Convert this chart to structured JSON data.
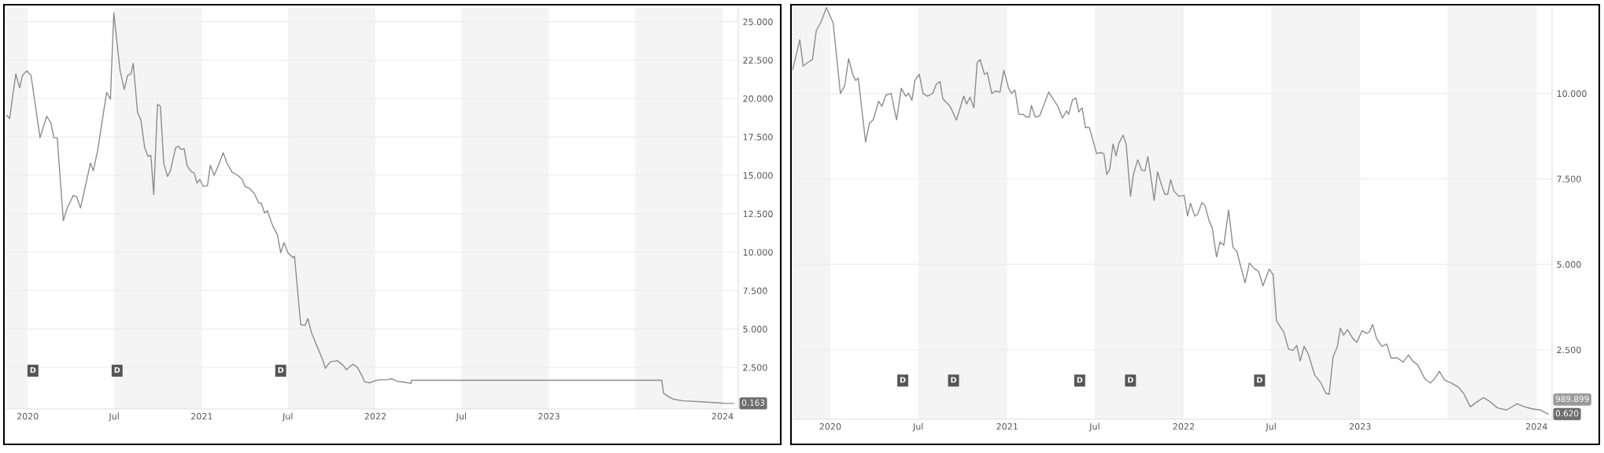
{
  "chart_data": [
    {
      "type": "line",
      "color": "#8c8c8c",
      "grid": "y",
      "legend": false,
      "marker": "none",
      "line_style": "solid",
      "x": [
        "2019-11-18",
        "2019-11-24",
        "2019-12-07",
        "2019-12-15",
        "2019-12-21",
        "2019-12-30",
        "2020-01-08",
        "2020-01-27",
        "2020-02-10",
        "2020-02-19",
        "2020-02-25",
        "2020-03-03",
        "2020-03-16",
        "2020-03-24",
        "2020-04-06",
        "2020-04-13",
        "2020-04-21",
        "2020-05-12",
        "2020-05-18",
        "2020-05-27",
        "2020-06-15",
        "2020-06-23",
        "2020-06-30",
        "2020-07-13",
        "2020-07-22",
        "2020-07-29",
        "2020-08-05",
        "2020-08-10",
        "2020-08-19",
        "2020-08-26",
        "2020-09-03",
        "2020-09-10",
        "2020-09-16",
        "2020-09-22",
        "2020-09-30",
        "2020-10-06",
        "2020-10-13",
        "2020-10-21",
        "2020-10-27",
        "2020-11-07",
        "2020-11-13",
        "2020-11-18",
        "2020-11-25",
        "2020-12-01",
        "2020-12-09",
        "2020-12-16",
        "2020-12-22",
        "2020-12-28",
        "2021-01-04",
        "2021-01-13",
        "2021-01-19",
        "2021-01-27",
        "2021-02-07",
        "2021-02-15",
        "2021-02-23",
        "2021-03-06",
        "2021-03-18",
        "2021-03-27",
        "2021-04-02",
        "2021-04-10",
        "2021-04-21",
        "2021-05-01",
        "2021-05-06",
        "2021-05-13",
        "2021-05-19",
        "2021-05-30",
        "2021-06-09",
        "2021-06-16",
        "2021-06-23",
        "2021-07-01",
        "2021-07-12",
        "2021-07-15",
        "2021-07-22",
        "2021-07-28",
        "2021-08-06",
        "2021-08-12",
        "2021-08-20",
        "2021-09-02",
        "2021-09-12",
        "2021-09-18",
        "2021-09-22",
        "2021-09-29",
        "2021-10-13",
        "2021-10-26",
        "2021-11-01",
        "2021-11-08",
        "2021-11-15",
        "2021-11-24",
        "2021-12-04",
        "2021-12-09",
        "2021-12-20",
        "2021-12-31",
        "2022-01-10",
        "2022-01-26",
        "2022-02-05",
        "2022-02-16",
        "2022-03-03",
        "2022-03-17",
        "2022-03-18",
        "2023-08-26",
        "2023-08-30",
        "2023-09-10",
        "2023-09-20",
        "2023-10-11",
        "2023-11-22",
        "2024-01-03",
        "2024-01-24"
      ],
      "values": [
        18.9,
        18.7,
        21.6,
        20.7,
        21.5,
        21.8,
        21.5,
        17.45,
        18.85,
        18.4,
        17.45,
        17.45,
        12.05,
        12.87,
        13.7,
        13.6,
        12.87,
        15.8,
        15.3,
        16.6,
        20.4,
        19.96,
        25.6,
        21.86,
        20.6,
        21.5,
        21.6,
        22.28,
        19.08,
        18.6,
        16.8,
        16.24,
        16.3,
        13.75,
        19.63,
        19.5,
        15.8,
        14.93,
        15.3,
        16.8,
        16.9,
        16.7,
        16.73,
        15.65,
        15.26,
        15.16,
        14.5,
        14.73,
        14.28,
        14.34,
        15.65,
        15.0,
        15.8,
        16.47,
        15.8,
        15.2,
        15.0,
        14.73,
        14.28,
        14.18,
        13.85,
        13.2,
        13.2,
        12.55,
        12.7,
        11.73,
        11.14,
        9.97,
        10.62,
        9.97,
        9.64,
        9.74,
        7.35,
        5.29,
        5.23,
        5.69,
        4.74,
        3.76,
        3.01,
        2.45,
        2.62,
        2.88,
        2.94,
        2.62,
        2.35,
        2.55,
        2.71,
        2.52,
        1.96,
        1.57,
        1.5,
        1.64,
        1.7,
        1.7,
        1.77,
        1.6,
        1.54,
        1.47,
        1.67,
        1.67,
        0.82,
        0.59,
        0.43,
        0.33,
        0.26,
        0.17,
        0.163
      ],
      "xlim": [
        "2019-11-17",
        "2024-02-03"
      ],
      "xticks": [
        {
          "value": "2020-01-01",
          "label": "2020"
        },
        {
          "value": "2020-07-01",
          "label": "Jul"
        },
        {
          "value": "2021-01-01",
          "label": "2021"
        },
        {
          "value": "2021-07-01",
          "label": "Jul"
        },
        {
          "value": "2022-01-01",
          "label": "2022"
        },
        {
          "value": "2022-07-01",
          "label": "Jul"
        },
        {
          "value": "2023-01-01",
          "label": "2023"
        },
        {
          "value": "2024-01-01",
          "label": "2024"
        }
      ],
      "ylim": [
        -0.2,
        25.9
      ],
      "yticks": [
        {
          "value": 2.5,
          "label": "2.500"
        },
        {
          "value": 5,
          "label": "5.000"
        },
        {
          "value": 7.5,
          "label": "7.500"
        },
        {
          "value": 10,
          "label": "10.000"
        },
        {
          "value": 12.5,
          "label": "12.500"
        },
        {
          "value": 15,
          "label": "15.000"
        },
        {
          "value": 17.5,
          "label": "17.500"
        },
        {
          "value": 20,
          "label": "20.000"
        },
        {
          "value": 22.5,
          "label": "22.500"
        },
        {
          "value": 25,
          "label": "25.000"
        }
      ],
      "bands": [
        {
          "axis": "x",
          "from": "2019-11-17",
          "to": "2020-01-01",
          "color": "#f4f4f4"
        },
        {
          "axis": "x",
          "from": "2020-07-01",
          "to": "2021-01-01",
          "color": "#f4f4f4"
        },
        {
          "axis": "x",
          "from": "2021-07-01",
          "to": "2022-01-01",
          "color": "#f4f4f4"
        },
        {
          "axis": "x",
          "from": "2022-07-01",
          "to": "2023-01-01",
          "color": "#f4f4f4"
        },
        {
          "axis": "x",
          "from": "2023-07-01",
          "to": "2024-01-01",
          "color": "#f4f4f4"
        }
      ],
      "annotations": [
        {
          "text": "D",
          "x": "2020-01-12",
          "y": 2.29
        },
        {
          "text": "D",
          "x": "2020-07-07",
          "y": 2.29
        },
        {
          "text": "D",
          "x": "2021-06-16",
          "y": 2.29
        },
        {
          "text": "0.163",
          "x": "2024-01-24",
          "y": 0.163
        }
      ]
    },
    {
      "type": "line",
      "color": "#8c8c8c",
      "grid": "y",
      "legend": false,
      "marker": "none",
      "line_style": "solid",
      "x": [
        "2019-10-15",
        "2019-10-30",
        "2019-11-06",
        "2019-11-16",
        "2019-11-25",
        "2019-12-03",
        "2019-12-14",
        "2019-12-24",
        "2020-01-07",
        "2020-01-22",
        "2020-01-31",
        "2020-02-08",
        "2020-02-17",
        "2020-02-23",
        "2020-02-28",
        "2020-03-14",
        "2020-03-22",
        "2020-03-30",
        "2020-04-10",
        "2020-04-17",
        "2020-04-25",
        "2020-05-06",
        "2020-05-17",
        "2020-05-27",
        "2020-06-05",
        "2020-06-11",
        "2020-06-18",
        "2020-06-24",
        "2020-07-03",
        "2020-07-11",
        "2020-07-20",
        "2020-07-31",
        "2020-08-07",
        "2020-08-15",
        "2020-08-21",
        "2020-09-05",
        "2020-09-18",
        "2020-10-03",
        "2020-10-09",
        "2020-10-16",
        "2020-10-24",
        "2020-10-31",
        "2020-11-06",
        "2020-11-15",
        "2020-11-21",
        "2020-11-30",
        "2020-12-08",
        "2020-12-17",
        "2020-12-25",
        "2021-01-04",
        "2021-01-10",
        "2021-01-17",
        "2021-01-25",
        "2021-02-03",
        "2021-02-09",
        "2021-02-16",
        "2021-02-20",
        "2021-02-28",
        "2021-03-09",
        "2021-03-28",
        "2021-04-06",
        "2021-04-16",
        "2021-04-25",
        "2021-05-04",
        "2021-05-08",
        "2021-05-16",
        "2021-05-23",
        "2021-05-29",
        "2021-06-05",
        "2021-06-12",
        "2021-06-20",
        "2021-07-05",
        "2021-07-13",
        "2021-07-20",
        "2021-07-26",
        "2021-08-01",
        "2021-08-08",
        "2021-08-14",
        "2021-08-20",
        "2021-08-29",
        "2021-09-04",
        "2021-09-13",
        "2021-09-19",
        "2021-09-28",
        "2021-10-06",
        "2021-10-13",
        "2021-10-19",
        "2021-10-26",
        "2021-11-01",
        "2021-11-08",
        "2021-11-16",
        "2021-11-23",
        "2021-11-29",
        "2021-12-05",
        "2021-12-12",
        "2021-12-22",
        "2022-01-02",
        "2022-01-09",
        "2022-01-15",
        "2022-01-24",
        "2022-01-30",
        "2022-02-08",
        "2022-02-14",
        "2022-02-23",
        "2022-03-01",
        "2022-03-10",
        "2022-03-17",
        "2022-03-25",
        "2022-04-04",
        "2022-04-13",
        "2022-04-21",
        "2022-05-08",
        "2022-05-17",
        "2022-05-26",
        "2022-06-05",
        "2022-06-14",
        "2022-06-27",
        "2022-07-05",
        "2022-07-12",
        "2022-07-18",
        "2022-07-27",
        "2022-08-06",
        "2022-08-15",
        "2022-08-23",
        "2022-08-30",
        "2022-09-07",
        "2022-09-16",
        "2022-09-29",
        "2022-10-12",
        "2022-10-22",
        "2022-10-29",
        "2022-11-06",
        "2022-11-15",
        "2022-11-21",
        "2022-11-28",
        "2022-12-06",
        "2022-12-17",
        "2022-12-25",
        "2023-01-05",
        "2023-01-14",
        "2023-01-20",
        "2023-01-27",
        "2023-02-04",
        "2023-02-15",
        "2023-02-25",
        "2023-03-06",
        "2023-03-19",
        "2023-03-31",
        "2023-04-11",
        "2023-04-20",
        "2023-04-30",
        "2023-05-15",
        "2023-05-26",
        "2023-06-04",
        "2023-06-14",
        "2023-06-25",
        "2023-07-08",
        "2023-07-23",
        "2023-08-03",
        "2023-08-17",
        "2023-08-28",
        "2023-09-13",
        "2023-09-25",
        "2023-10-12",
        "2023-10-31",
        "2023-11-22",
        "2023-12-05",
        "2023-12-24",
        "2024-01-09",
        "2024-01-25"
      ],
      "values": [
        10.68,
        11.57,
        10.8,
        10.91,
        10.99,
        11.83,
        12.13,
        12.51,
        12.06,
        10.0,
        10.23,
        11.02,
        10.53,
        10.38,
        10.45,
        8.58,
        9.13,
        9.23,
        9.77,
        9.62,
        9.95,
        10.0,
        9.23,
        10.15,
        9.92,
        10.0,
        9.8,
        10.38,
        10.56,
        10.0,
        9.92,
        10.0,
        10.26,
        10.35,
        9.84,
        9.62,
        9.22,
        9.92,
        9.69,
        9.89,
        9.58,
        10.91,
        10.99,
        10.56,
        10.61,
        10.0,
        10.07,
        10.04,
        10.68,
        10.15,
        10.0,
        10.1,
        9.39,
        9.39,
        9.31,
        9.31,
        9.65,
        9.31,
        9.34,
        10.04,
        9.84,
        9.62,
        9.28,
        9.49,
        9.39,
        9.81,
        9.87,
        9.46,
        9.58,
        9.0,
        9.0,
        8.24,
        8.27,
        8.24,
        7.63,
        7.78,
        8.52,
        8.17,
        8.55,
        8.78,
        8.52,
        6.99,
        7.63,
        8.06,
        7.75,
        7.74,
        8.15,
        7.48,
        6.87,
        7.71,
        7.33,
        7.05,
        7.05,
        7.48,
        7.14,
        6.99,
        7.02,
        6.41,
        6.79,
        6.41,
        6.47,
        6.81,
        6.72,
        6.26,
        6.07,
        5.22,
        5.65,
        5.56,
        6.59,
        5.5,
        5.37,
        4.46,
        5.04,
        4.89,
        4.79,
        4.37,
        4.86,
        4.7,
        3.36,
        3.21,
        3.02,
        2.52,
        2.48,
        2.63,
        2.17,
        2.6,
        2.37,
        1.76,
        1.53,
        1.23,
        1.2,
        2.29,
        2.6,
        3.13,
        2.93,
        3.09,
        2.83,
        2.72,
        3.06,
        2.98,
        3.02,
        3.24,
        2.83,
        2.6,
        2.67,
        2.26,
        2.26,
        2.14,
        2.35,
        2.17,
        2.06,
        1.65,
        1.53,
        1.65,
        1.87,
        1.61,
        1.53,
        1.41,
        1.23,
        0.83,
        0.95,
        1.1,
        1.0,
        0.8,
        0.74,
        0.92,
        0.84,
        0.77,
        0.74,
        0.62
      ],
      "xlim": [
        "2019-10-15",
        "2024-02-02"
      ],
      "xticks": [
        {
          "value": "2020-01-01",
          "label": "2020"
        },
        {
          "value": "2020-07-01",
          "label": "Jul"
        },
        {
          "value": "2021-01-01",
          "label": "2021"
        },
        {
          "value": "2021-07-01",
          "label": "Jul"
        },
        {
          "value": "2022-01-01",
          "label": "2022"
        },
        {
          "value": "2022-07-01",
          "label": "Jul"
        },
        {
          "value": "2023-01-01",
          "label": "2023"
        },
        {
          "value": "2024-01-01",
          "label": "2024"
        }
      ],
      "ylim": [
        0.47,
        12.55
      ],
      "yticks": [
        {
          "value": 2.5,
          "label": "2.500"
        },
        {
          "value": 5,
          "label": "5.000"
        },
        {
          "value": 7.5,
          "label": "7.500"
        },
        {
          "value": 10,
          "label": "10.000"
        }
      ],
      "bands": [
        {
          "axis": "x",
          "from": "2019-10-15",
          "to": "2020-01-01",
          "color": "#f4f4f4"
        },
        {
          "axis": "x",
          "from": "2020-07-01",
          "to": "2021-01-01",
          "color": "#f4f4f4"
        },
        {
          "axis": "x",
          "from": "2021-07-01",
          "to": "2022-01-01",
          "color": "#f4f4f4"
        },
        {
          "axis": "x",
          "from": "2022-07-01",
          "to": "2023-01-01",
          "color": "#f4f4f4"
        },
        {
          "axis": "x",
          "from": "2023-07-01",
          "to": "2024-01-01",
          "color": "#f4f4f4"
        }
      ],
      "annotations": [
        {
          "text": "D",
          "x": "2020-05-30",
          "y": 1.6
        },
        {
          "text": "D",
          "x": "2020-09-12",
          "y": 1.6
        },
        {
          "text": "D",
          "x": "2021-05-31",
          "y": 1.6
        },
        {
          "text": "D",
          "x": "2021-09-13",
          "y": 1.6
        },
        {
          "text": "D",
          "x": "2022-06-07",
          "y": 1.6
        },
        "989.899",
        {
          "text": "0.620",
          "x": "2024-01-25",
          "y": 0.62
        }
      ]
    }
  ]
}
